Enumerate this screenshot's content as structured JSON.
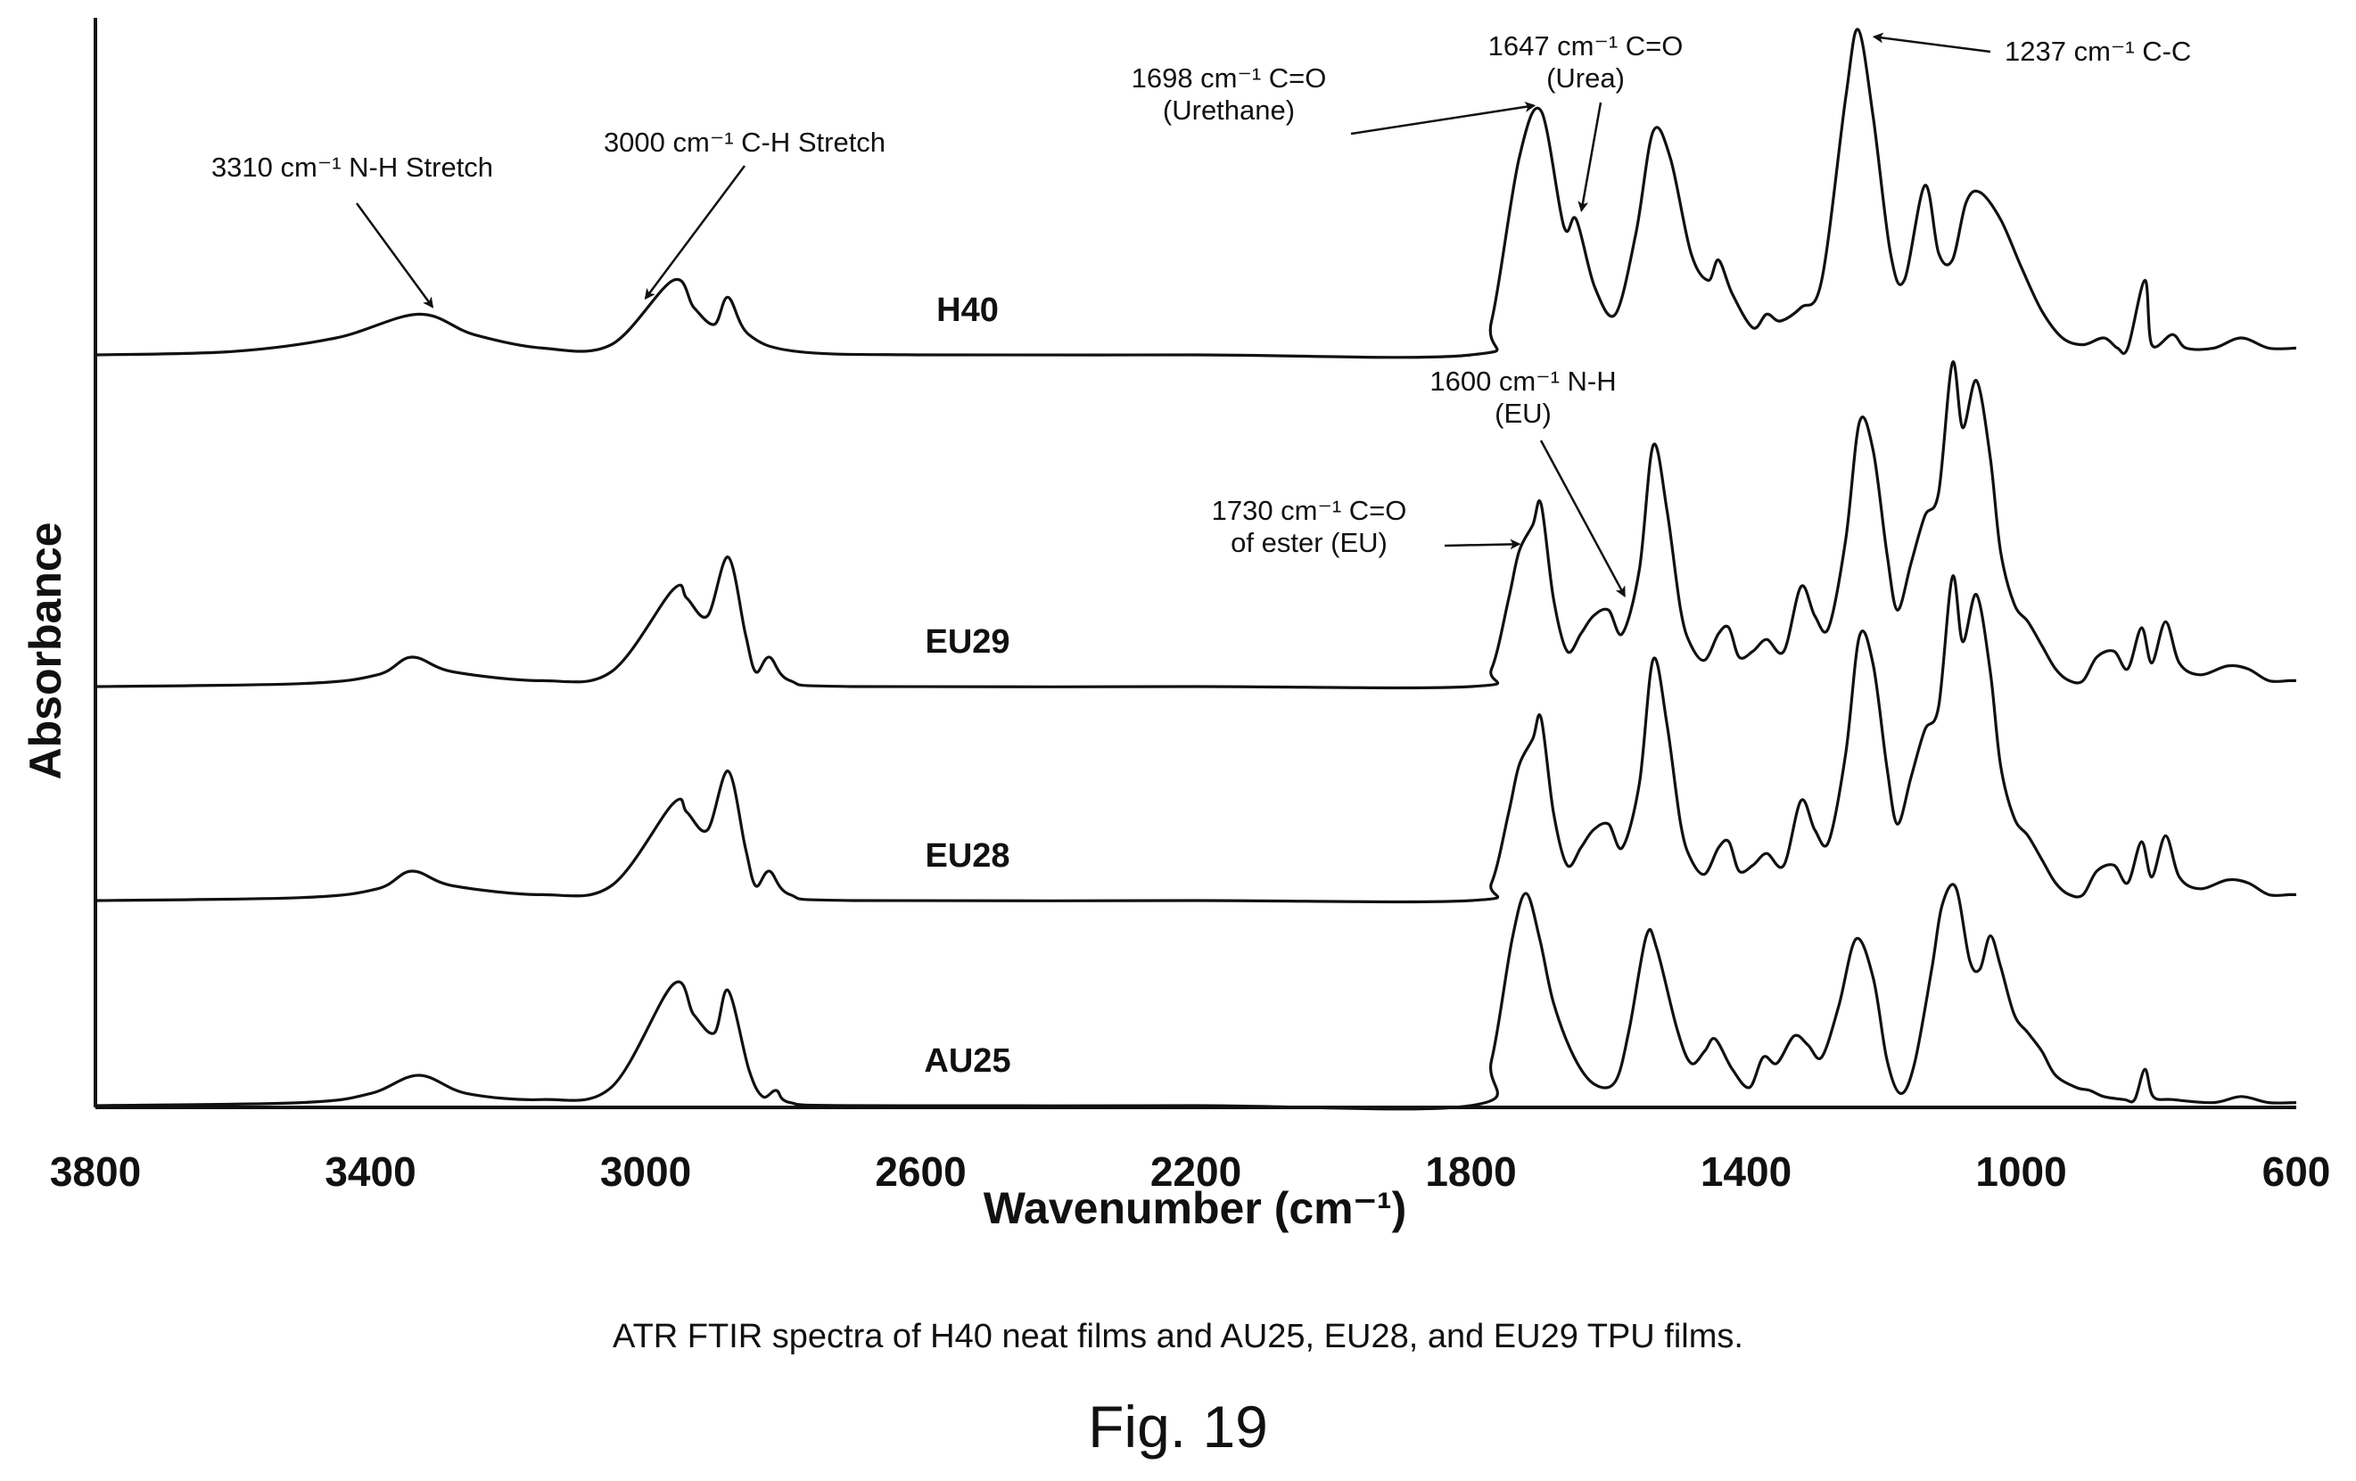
{
  "chart_data": {
    "type": "line",
    "xlabel": "Wavenumber (cm⁻¹)",
    "ylabel": "Absorbance",
    "xlim": [
      3800,
      600
    ],
    "x_reversed": true,
    "xticks": [
      3800,
      3400,
      3000,
      2600,
      2200,
      1800,
      1400,
      1000,
      600
    ],
    "y_ticks_shown": false,
    "grid": false,
    "series": [
      {
        "name": "H40",
        "points": [
          [
            3800,
            0
          ],
          [
            3600,
            0.01
          ],
          [
            3450,
            0.05
          ],
          [
            3330,
            0.12
          ],
          [
            3250,
            0.06
          ],
          [
            3150,
            0.02
          ],
          [
            3050,
            0.03
          ],
          [
            2960,
            0.22
          ],
          [
            2930,
            0.14
          ],
          [
            2900,
            0.09
          ],
          [
            2880,
            0.17
          ],
          [
            2850,
            0.06
          ],
          [
            2780,
            0.01
          ],
          [
            2600,
            0
          ],
          [
            2200,
            0
          ],
          [
            1800,
            0
          ],
          [
            1770,
            0.1
          ],
          [
            1730,
            0.58
          ],
          [
            1698,
            0.72
          ],
          [
            1665,
            0.38
          ],
          [
            1647,
            0.4
          ],
          [
            1620,
            0.2
          ],
          [
            1590,
            0.12
          ],
          [
            1560,
            0.36
          ],
          [
            1535,
            0.66
          ],
          [
            1510,
            0.58
          ],
          [
            1480,
            0.3
          ],
          [
            1455,
            0.22
          ],
          [
            1440,
            0.28
          ],
          [
            1420,
            0.18
          ],
          [
            1390,
            0.08
          ],
          [
            1370,
            0.12
          ],
          [
            1350,
            0.1
          ],
          [
            1320,
            0.14
          ],
          [
            1290,
            0.22
          ],
          [
            1255,
            0.76
          ],
          [
            1237,
            0.96
          ],
          [
            1215,
            0.7
          ],
          [
            1190,
            0.3
          ],
          [
            1170,
            0.22
          ],
          [
            1140,
            0.5
          ],
          [
            1120,
            0.3
          ],
          [
            1100,
            0.28
          ],
          [
            1080,
            0.45
          ],
          [
            1060,
            0.48
          ],
          [
            1030,
            0.4
          ],
          [
            1000,
            0.26
          ],
          [
            970,
            0.13
          ],
          [
            940,
            0.05
          ],
          [
            910,
            0.03
          ],
          [
            880,
            0.05
          ],
          [
            860,
            0.02
          ],
          [
            845,
            0.02
          ],
          [
            820,
            0.22
          ],
          [
            810,
            0.03
          ],
          [
            780,
            0.06
          ],
          [
            760,
            0.02
          ],
          [
            720,
            0.02
          ],
          [
            680,
            0.05
          ],
          [
            640,
            0.02
          ],
          [
            600,
            0.02
          ]
        ]
      },
      {
        "name": "EU29",
        "points": [
          [
            3800,
            0
          ],
          [
            3500,
            0.01
          ],
          [
            3390,
            0.04
          ],
          [
            3340,
            0.1
          ],
          [
            3280,
            0.05
          ],
          [
            3150,
            0.02
          ],
          [
            3050,
            0.05
          ],
          [
            2960,
            0.33
          ],
          [
            2940,
            0.3
          ],
          [
            2910,
            0.24
          ],
          [
            2880,
            0.44
          ],
          [
            2855,
            0.18
          ],
          [
            2840,
            0.05
          ],
          [
            2820,
            0.1
          ],
          [
            2790,
            0.02
          ],
          [
            2700,
            0
          ],
          [
            2200,
            0
          ],
          [
            1800,
            0
          ],
          [
            1770,
            0.06
          ],
          [
            1745,
            0.3
          ],
          [
            1730,
            0.46
          ],
          [
            1710,
            0.55
          ],
          [
            1698,
            0.62
          ],
          [
            1680,
            0.3
          ],
          [
            1660,
            0.12
          ],
          [
            1640,
            0.18
          ],
          [
            1622,
            0.24
          ],
          [
            1600,
            0.26
          ],
          [
            1580,
            0.18
          ],
          [
            1555,
            0.4
          ],
          [
            1535,
            0.82
          ],
          [
            1515,
            0.6
          ],
          [
            1495,
            0.26
          ],
          [
            1480,
            0.14
          ],
          [
            1460,
            0.09
          ],
          [
            1440,
            0.18
          ],
          [
            1425,
            0.2
          ],
          [
            1410,
            0.1
          ],
          [
            1390,
            0.12
          ],
          [
            1370,
            0.16
          ],
          [
            1345,
            0.12
          ],
          [
            1320,
            0.34
          ],
          [
            1300,
            0.24
          ],
          [
            1280,
            0.2
          ],
          [
            1255,
            0.5
          ],
          [
            1235,
            0.9
          ],
          [
            1215,
            0.8
          ],
          [
            1195,
            0.45
          ],
          [
            1180,
            0.26
          ],
          [
            1160,
            0.42
          ],
          [
            1140,
            0.58
          ],
          [
            1120,
            0.66
          ],
          [
            1100,
            1.1
          ],
          [
            1085,
            0.88
          ],
          [
            1065,
            1.04
          ],
          [
            1045,
            0.78
          ],
          [
            1030,
            0.46
          ],
          [
            1010,
            0.28
          ],
          [
            990,
            0.22
          ],
          [
            970,
            0.14
          ],
          [
            950,
            0.06
          ],
          [
            930,
            0.02
          ],
          [
            910,
            0.02
          ],
          [
            890,
            0.1
          ],
          [
            865,
            0.12
          ],
          [
            845,
            0.06
          ],
          [
            825,
            0.2
          ],
          [
            810,
            0.08
          ],
          [
            790,
            0.22
          ],
          [
            770,
            0.08
          ],
          [
            740,
            0.04
          ],
          [
            700,
            0.07
          ],
          [
            670,
            0.06
          ],
          [
            640,
            0.02
          ],
          [
            610,
            0.02
          ],
          [
            600,
            0.02
          ]
        ]
      },
      {
        "name": "EU28",
        "points": [
          [
            3800,
            0
          ],
          [
            3500,
            0.01
          ],
          [
            3390,
            0.04
          ],
          [
            3340,
            0.1
          ],
          [
            3280,
            0.05
          ],
          [
            3150,
            0.02
          ],
          [
            3050,
            0.05
          ],
          [
            2960,
            0.33
          ],
          [
            2940,
            0.3
          ],
          [
            2910,
            0.24
          ],
          [
            2880,
            0.44
          ],
          [
            2855,
            0.18
          ],
          [
            2840,
            0.05
          ],
          [
            2820,
            0.1
          ],
          [
            2790,
            0.02
          ],
          [
            2700,
            0
          ],
          [
            2200,
            0
          ],
          [
            1800,
            0
          ],
          [
            1770,
            0.06
          ],
          [
            1745,
            0.3
          ],
          [
            1730,
            0.46
          ],
          [
            1710,
            0.55
          ],
          [
            1698,
            0.62
          ],
          [
            1680,
            0.3
          ],
          [
            1660,
            0.12
          ],
          [
            1640,
            0.18
          ],
          [
            1622,
            0.24
          ],
          [
            1600,
            0.26
          ],
          [
            1580,
            0.18
          ],
          [
            1555,
            0.4
          ],
          [
            1535,
            0.82
          ],
          [
            1515,
            0.6
          ],
          [
            1495,
            0.26
          ],
          [
            1480,
            0.14
          ],
          [
            1460,
            0.09
          ],
          [
            1440,
            0.18
          ],
          [
            1425,
            0.2
          ],
          [
            1410,
            0.1
          ],
          [
            1390,
            0.12
          ],
          [
            1370,
            0.16
          ],
          [
            1345,
            0.12
          ],
          [
            1320,
            0.34
          ],
          [
            1300,
            0.24
          ],
          [
            1280,
            0.2
          ],
          [
            1255,
            0.5
          ],
          [
            1235,
            0.9
          ],
          [
            1215,
            0.8
          ],
          [
            1195,
            0.45
          ],
          [
            1180,
            0.26
          ],
          [
            1160,
            0.42
          ],
          [
            1140,
            0.58
          ],
          [
            1120,
            0.66
          ],
          [
            1100,
            1.1
          ],
          [
            1085,
            0.88
          ],
          [
            1065,
            1.04
          ],
          [
            1045,
            0.78
          ],
          [
            1030,
            0.46
          ],
          [
            1010,
            0.28
          ],
          [
            990,
            0.22
          ],
          [
            970,
            0.14
          ],
          [
            950,
            0.06
          ],
          [
            930,
            0.02
          ],
          [
            910,
            0.02
          ],
          [
            890,
            0.1
          ],
          [
            865,
            0.12
          ],
          [
            845,
            0.06
          ],
          [
            825,
            0.2
          ],
          [
            810,
            0.08
          ],
          [
            790,
            0.22
          ],
          [
            770,
            0.08
          ],
          [
            740,
            0.04
          ],
          [
            700,
            0.07
          ],
          [
            670,
            0.06
          ],
          [
            640,
            0.02
          ],
          [
            610,
            0.02
          ],
          [
            600,
            0.02
          ]
        ]
      },
      {
        "name": "AU25",
        "points": [
          [
            3800,
            0
          ],
          [
            3500,
            0.01
          ],
          [
            3400,
            0.04
          ],
          [
            3330,
            0.1
          ],
          [
            3260,
            0.04
          ],
          [
            3150,
            0.02
          ],
          [
            3050,
            0.06
          ],
          [
            2960,
            0.4
          ],
          [
            2930,
            0.3
          ],
          [
            2900,
            0.24
          ],
          [
            2880,
            0.38
          ],
          [
            2850,
            0.12
          ],
          [
            2830,
            0.03
          ],
          [
            2810,
            0.05
          ],
          [
            2790,
            0.01
          ],
          [
            2700,
            0
          ],
          [
            2200,
            0
          ],
          [
            1800,
            0
          ],
          [
            1770,
            0.15
          ],
          [
            1740,
            0.55
          ],
          [
            1720,
            0.7
          ],
          [
            1700,
            0.55
          ],
          [
            1680,
            0.34
          ],
          [
            1650,
            0.16
          ],
          [
            1620,
            0.07
          ],
          [
            1590,
            0.08
          ],
          [
            1570,
            0.25
          ],
          [
            1545,
            0.56
          ],
          [
            1530,
            0.52
          ],
          [
            1500,
            0.25
          ],
          [
            1480,
            0.14
          ],
          [
            1460,
            0.18
          ],
          [
            1445,
            0.22
          ],
          [
            1420,
            0.12
          ],
          [
            1395,
            0.06
          ],
          [
            1375,
            0.16
          ],
          [
            1355,
            0.14
          ],
          [
            1330,
            0.23
          ],
          [
            1310,
            0.2
          ],
          [
            1290,
            0.16
          ],
          [
            1265,
            0.33
          ],
          [
            1240,
            0.55
          ],
          [
            1215,
            0.42
          ],
          [
            1195,
            0.15
          ],
          [
            1175,
            0.04
          ],
          [
            1155,
            0.14
          ],
          [
            1130,
            0.45
          ],
          [
            1115,
            0.66
          ],
          [
            1095,
            0.72
          ],
          [
            1075,
            0.48
          ],
          [
            1060,
            0.45
          ],
          [
            1045,
            0.56
          ],
          [
            1030,
            0.46
          ],
          [
            1010,
            0.3
          ],
          [
            990,
            0.24
          ],
          [
            970,
            0.18
          ],
          [
            950,
            0.1
          ],
          [
            920,
            0.06
          ],
          [
            900,
            0.05
          ],
          [
            880,
            0.03
          ],
          [
            850,
            0.02
          ],
          [
            835,
            0.02
          ],
          [
            820,
            0.12
          ],
          [
            808,
            0.03
          ],
          [
            780,
            0.02
          ],
          [
            720,
            0.01
          ],
          [
            680,
            0.03
          ],
          [
            640,
            0.01
          ],
          [
            600,
            0.01
          ]
        ]
      }
    ],
    "annotations": [
      {
        "id": "nh-stretch",
        "text": "3310 cm⁻¹ N-H Stretch",
        "x": 3310,
        "series": "H40"
      },
      {
        "id": "ch-stretch",
        "text": "3000 cm⁻¹ C-H Stretch",
        "x": 3000,
        "series": "H40"
      },
      {
        "id": "urethane",
        "text": "1698 cm⁻¹ C=O",
        "text2": "(Urethane)",
        "x": 1698,
        "series": "H40"
      },
      {
        "id": "urea",
        "text": "1647 cm⁻¹ C=O",
        "text2": "(Urea)",
        "x": 1647,
        "series": "H40"
      },
      {
        "id": "cc",
        "text": "1237 cm⁻¹ C-C",
        "x": 1237,
        "series": "H40"
      },
      {
        "id": "nh-eu",
        "text": "1600 cm⁻¹ N-H",
        "text2": "(EU)",
        "x": 1600,
        "series": "EU29"
      },
      {
        "id": "ester",
        "text": "1730 cm⁻¹ C=O",
        "text2": "of ester (EU)",
        "x": 1730,
        "series": "EU29"
      }
    ]
  },
  "caption": "ATR FTIR spectra of H40 neat films and AU25, EU28, and EU29 TPU films.",
  "figure_label": "Fig. 19"
}
